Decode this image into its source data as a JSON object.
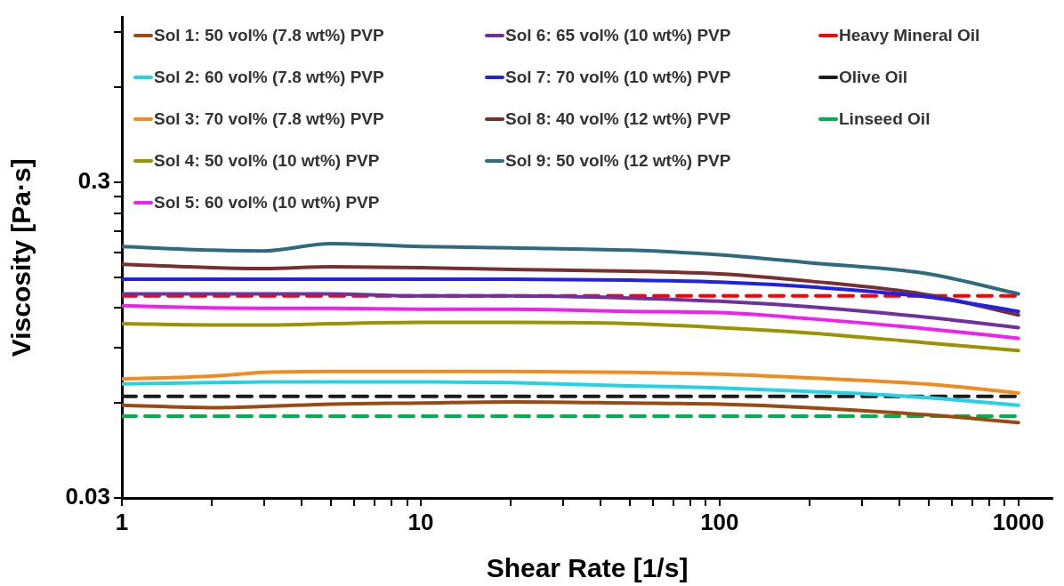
{
  "chart_data": {
    "type": "line",
    "xlabel": "Shear Rate [1/s]",
    "ylabel": "Viscosity [Pa·s]",
    "log": "xy",
    "marker": "none",
    "legend": "top",
    "xlim": [
      1,
      1300
    ],
    "ylim": [
      0.03,
      1
    ],
    "xticks": [
      1,
      {
        "value": 2,
        "label": null
      },
      {
        "value": 3,
        "label": null
      },
      {
        "value": 4,
        "label": null
      },
      {
        "value": 5,
        "label": null
      },
      {
        "value": 6,
        "label": null
      },
      {
        "value": 7,
        "label": null
      },
      {
        "value": 8,
        "label": null
      },
      {
        "value": 9,
        "label": null
      },
      10,
      {
        "value": 20,
        "label": null
      },
      {
        "value": 30,
        "label": null
      },
      {
        "value": 40,
        "label": null
      },
      {
        "value": 50,
        "label": null
      },
      {
        "value": 60,
        "label": null
      },
      {
        "value": 70,
        "label": null
      },
      {
        "value": 80,
        "label": null
      },
      {
        "value": 90,
        "label": null
      },
      100,
      {
        "value": 200,
        "label": null
      },
      {
        "value": 300,
        "label": null
      },
      {
        "value": 400,
        "label": null
      },
      {
        "value": 500,
        "label": null
      },
      {
        "value": 600,
        "label": null
      },
      {
        "value": 700,
        "label": null
      },
      {
        "value": 800,
        "label": null
      },
      {
        "value": 900,
        "label": null
      },
      1000
    ],
    "yticks": [
      0.03,
      {
        "value": 0.06,
        "label": null
      },
      {
        "value": 0.09,
        "label": null
      },
      {
        "value": 0.12,
        "label": null
      },
      {
        "value": 0.15,
        "label": null
      },
      {
        "value": 0.18,
        "label": null
      },
      {
        "value": 0.21,
        "label": null
      },
      {
        "value": 0.24,
        "label": null
      },
      {
        "value": 0.27,
        "label": null
      },
      0.3,
      {
        "value": 0.6,
        "label": null
      },
      {
        "value": 0.9,
        "label": null
      }
    ],
    "x": [
      1,
      2,
      3,
      5,
      10,
      20,
      50,
      100,
      200,
      500,
      1000
    ],
    "series": [
      {
        "name": "Sol 1: 50 vol% (7.8 wt%) PVP",
        "color": "#9c4a0f",
        "values": [
          0.059,
          0.058,
          0.0585,
          0.0595,
          0.06,
          0.0605,
          0.06,
          0.0595,
          0.058,
          0.055,
          0.052
        ]
      },
      {
        "name": "Sol 2: 60 vol% (7.8 wt%) PVP",
        "color": "#22d3e6",
        "values": [
          0.069,
          0.0696,
          0.07,
          0.07,
          0.07,
          0.0696,
          0.068,
          0.067,
          0.0653,
          0.0624,
          0.059
        ]
      },
      {
        "name": "Sol 3: 70 vol% (7.8 wt%) PVP",
        "color": "#f08c1e",
        "values": [
          0.0715,
          0.073,
          0.075,
          0.0755,
          0.0755,
          0.0755,
          0.075,
          0.074,
          0.072,
          0.0688,
          0.0645
        ]
      },
      {
        "name": "Sol 4: 50 vol% (10 wt%) PVP",
        "color": "#999400",
        "values": [
          0.107,
          0.106,
          0.106,
          0.107,
          0.108,
          0.108,
          0.107,
          0.104,
          0.1,
          0.093,
          0.088
        ]
      },
      {
        "name": "Sol 5: 60 vol% (10 wt%) PVP",
        "color": "#f020f0",
        "values": [
          0.122,
          0.12,
          0.1196,
          0.1196,
          0.119,
          0.119,
          0.117,
          0.116,
          0.111,
          0.103,
          0.0962
        ]
      },
      {
        "name": "Sol 6: 65 vol% (10 wt%) PVP",
        "color": "#7030a0",
        "values": [
          0.133,
          0.133,
          0.133,
          0.133,
          0.131,
          0.131,
          0.129,
          0.126,
          0.121,
          0.112,
          0.104
        ]
      },
      {
        "name": "Sol 7: 70 vol% (10 wt%) PVP",
        "color": "#2020e8",
        "values": [
          0.148,
          0.148,
          0.148,
          0.148,
          0.148,
          0.148,
          0.147,
          0.145,
          0.14,
          0.13,
          0.117
        ]
      },
      {
        "name": "Sol 8: 40 vol% (12 wt%) PVP",
        "color": "#7a2f2f",
        "values": [
          0.165,
          0.161,
          0.16,
          0.162,
          0.161,
          0.159,
          0.157,
          0.154,
          0.146,
          0.132,
          0.114
        ]
      },
      {
        "name": "Sol 9: 50 vol% (12 wt%) PVP",
        "color": "#2e6b7e",
        "values": [
          0.188,
          0.183,
          0.182,
          0.192,
          0.188,
          0.186,
          0.183,
          0.177,
          0.167,
          0.154,
          0.133
        ]
      },
      {
        "name": "Heavy Mineral Oil",
        "color": "#ff0000",
        "line_style": "dashed",
        "values": [
          0.131,
          0.131,
          0.131,
          0.131,
          0.131,
          0.131,
          0.131,
          0.131,
          0.131,
          0.131,
          0.131
        ]
      },
      {
        "name": "Olive Oil",
        "color": "#1a1a1a",
        "line_style": "dashed",
        "values": [
          0.063,
          0.063,
          0.063,
          0.063,
          0.063,
          0.063,
          0.063,
          0.063,
          0.063,
          0.063,
          0.063
        ]
      },
      {
        "name": "Linseed Oil",
        "color": "#00b050",
        "line_style": "dashed",
        "values": [
          0.0545,
          0.0545,
          0.0545,
          0.0545,
          0.0545,
          0.0545,
          0.0545,
          0.0545,
          0.0545,
          0.0545,
          0.0545
        ]
      }
    ]
  }
}
